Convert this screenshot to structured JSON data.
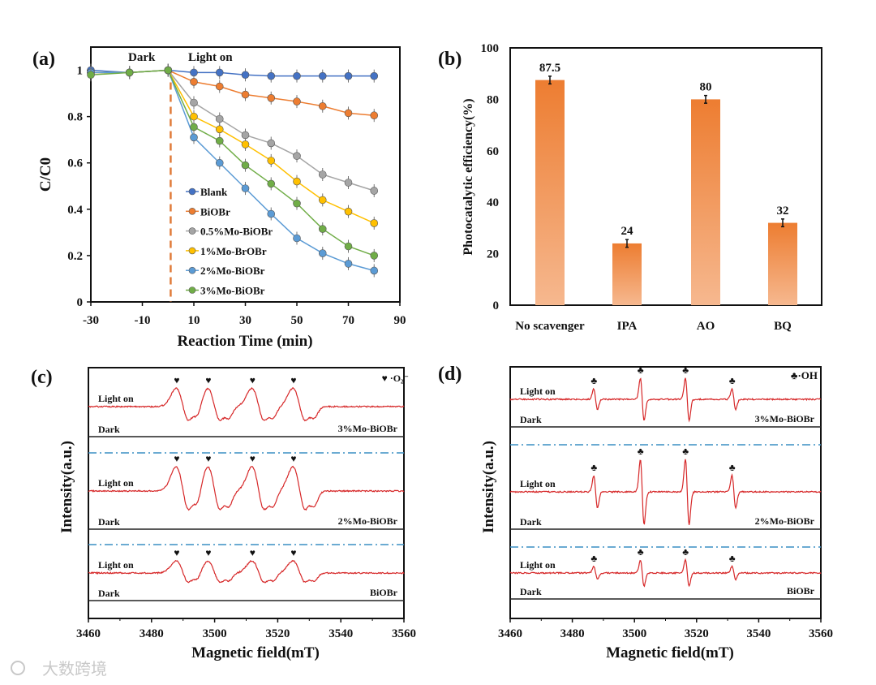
{
  "figure": {
    "watermark": "大数跨境"
  },
  "chart_data": [
    {
      "panel": "(a)",
      "type": "line",
      "xlabel": "Reaction  Time (min)",
      "ylabel": "C/C0",
      "xlim": [
        -30,
        90
      ],
      "ylim": [
        0,
        1.1
      ],
      "xticks": [
        "-30",
        "-10",
        "10",
        "30",
        "50",
        "70",
        "90"
      ],
      "yticks": [
        "0",
        "0.2",
        "0.4",
        "0.6",
        "0.8",
        "1"
      ],
      "annotations": {
        "dark": "Dark",
        "light": "Light on",
        "light_on_time": 1
      },
      "legend_position": "center-left",
      "x": [
        -30,
        -15,
        0,
        10,
        20,
        30,
        40,
        50,
        60,
        70,
        80
      ],
      "series": [
        {
          "name": "Blank",
          "color": "#4472c4",
          "values": [
            1.0,
            0.99,
            1.0,
            0.99,
            0.99,
            0.98,
            0.975,
            0.975,
            0.975,
            0.975,
            0.975
          ]
        },
        {
          "name": "BiOBr",
          "color": "#ed7d31",
          "values": [
            0.99,
            0.99,
            1.0,
            0.95,
            0.93,
            0.895,
            0.88,
            0.865,
            0.845,
            0.815,
            0.805
          ]
        },
        {
          "name": "0.5%Mo-BiOBr",
          "color": "#a5a5a5",
          "values": [
            0.99,
            0.99,
            1.0,
            0.86,
            0.79,
            0.72,
            0.685,
            0.63,
            0.55,
            0.515,
            0.48
          ]
        },
        {
          "name": "1%Mo-BrOBr",
          "color": "#ffc000",
          "values": [
            0.99,
            0.99,
            1.0,
            0.8,
            0.745,
            0.68,
            0.61,
            0.52,
            0.44,
            0.39,
            0.34
          ]
        },
        {
          "name": "2%Mo-BiOBr",
          "color": "#5b9bd5",
          "values": [
            0.99,
            0.99,
            1.0,
            0.71,
            0.6,
            0.49,
            0.38,
            0.275,
            0.21,
            0.165,
            0.135
          ]
        },
        {
          "name": "3%Mo-BiOBr",
          "color": "#70ad47",
          "values": [
            0.98,
            0.99,
            1.0,
            0.755,
            0.695,
            0.59,
            0.51,
            0.425,
            0.315,
            0.24,
            0.2
          ]
        }
      ]
    },
    {
      "panel": "(b)",
      "type": "bar",
      "ylabel": "Photocatalytic efficiency(%)",
      "xlabel": "",
      "ylim": [
        0,
        100
      ],
      "yticks": [
        "0",
        "20",
        "40",
        "60",
        "80",
        "100"
      ],
      "categories": [
        "No scavenger",
        "IPA",
        "AO",
        "BQ"
      ],
      "values": [
        87.5,
        24,
        80,
        32
      ],
      "value_labels": [
        "87.5",
        "24",
        "80",
        "32"
      ],
      "error": [
        1.5,
        1.5,
        1.5,
        1.5
      ],
      "color": "#ed7d31"
    },
    {
      "panel": "(c)",
      "type": "line",
      "xlabel": "Magnetic  field(mT)",
      "ylabel": "Intensity(a.u.)",
      "xlim": [
        3460,
        3560
      ],
      "xticks": [
        "3460",
        "3480",
        "3500",
        "3520",
        "3540",
        "3560"
      ],
      "legend": "♥ ·O₂⁻",
      "marker": "♥",
      "peaks": [
        3490,
        3500,
        3514,
        3527
      ],
      "peak_weights": [
        1,
        1,
        1,
        1
      ],
      "groups": [
        {
          "sample": "3%Mo-BiOBr",
          "light_label": "Light on",
          "dark_label": "Dark",
          "relative_intensity": 0.75
        },
        {
          "sample": "2%Mo-BiOBr",
          "light_label": "Light on",
          "dark_label": "Dark",
          "relative_intensity": 1.0
        },
        {
          "sample": "BiOBr",
          "light_label": "Light on",
          "dark_label": "Dark",
          "relative_intensity": 0.5
        }
      ]
    },
    {
      "panel": "(d)",
      "type": "line",
      "xlabel": "Magnetic  field(mT)",
      "ylabel": "Intensity(a.u.)",
      "xlim": [
        3460,
        3560
      ],
      "xticks": [
        "3460",
        "3480",
        "3500",
        "3520",
        "3540",
        "3560"
      ],
      "legend": "♣·OH",
      "marker": "♣",
      "peaks": [
        3487.5,
        3502.5,
        3517,
        3532
      ],
      "peak_weights": [
        0.5,
        1,
        1,
        0.5
      ],
      "groups": [
        {
          "sample": "3%Mo-BiOBr",
          "light_label": "Light on",
          "dark_label": "Dark",
          "relative_intensity": 0.65
        },
        {
          "sample": "2%Mo-BiOBr",
          "light_label": "Light on",
          "dark_label": "Dark",
          "relative_intensity": 1.0
        },
        {
          "sample": "BiOBr",
          "light_label": "Light on",
          "dark_label": "Dark",
          "relative_intensity": 0.4
        }
      ]
    }
  ]
}
